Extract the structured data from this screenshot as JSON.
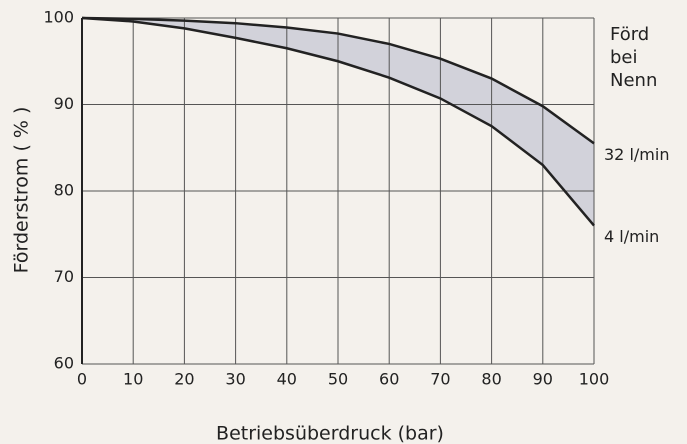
{
  "chart_data": {
    "type": "line",
    "x_label": "Betriebsüberdruck  (bar)",
    "y_label": "Förderstrom  ( % )",
    "annotations": [
      "Förd",
      "bei",
      "Nenn"
    ],
    "x": [
      0,
      10,
      20,
      30,
      40,
      50,
      60,
      70,
      80,
      90,
      100
    ],
    "series": [
      {
        "name": "32 l/min",
        "color": "#222222",
        "values": [
          100,
          99.9,
          99.7,
          99.4,
          98.9,
          98.2,
          97,
          95.3,
          93,
          89.8,
          85.5
        ]
      },
      {
        "name": "4 l/min",
        "color": "#222222",
        "values": [
          100,
          99.6,
          98.8,
          97.7,
          96.5,
          95,
          93.1,
          90.7,
          87.5,
          83,
          76
        ]
      }
    ],
    "fill_between": "#d2d2da",
    "xlim": [
      0,
      100
    ],
    "xticks": [
      0,
      10,
      20,
      30,
      40,
      50,
      60,
      70,
      80,
      90,
      100
    ],
    "ylim": [
      60,
      100
    ],
    "yticks": [
      60,
      70,
      80,
      90,
      100
    ],
    "grid": true
  }
}
